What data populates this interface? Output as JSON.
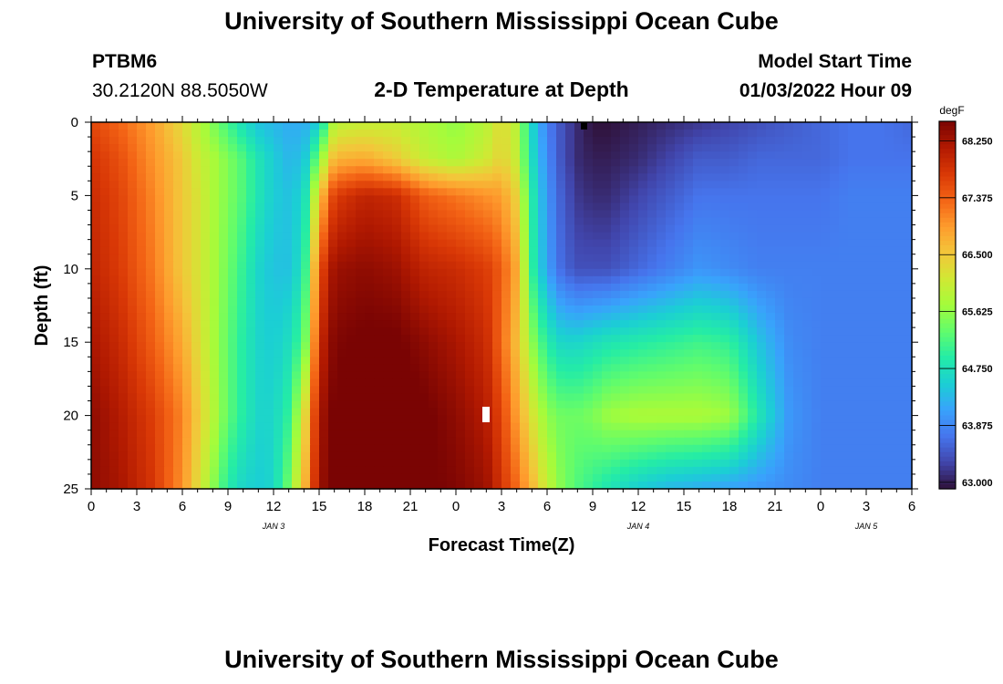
{
  "page": {
    "title": "University of Southern Mississippi Ocean Cube",
    "footer_title": "University of Southern Mississippi Ocean Cube"
  },
  "station": {
    "id": "PTBM6",
    "coords": "30.2120N  88.5050W"
  },
  "model": {
    "start_label": "Model Start Time",
    "start_value": "01/03/2022 Hour 09"
  },
  "chart_data": {
    "type": "heatmap",
    "title": "2-D Temperature at Depth",
    "xlabel": "Forecast Time(Z)",
    "ylabel": "Depth (ft)",
    "x_range_hours_from_jan3_00z": [
      0,
      54
    ],
    "x_tick_labels": [
      "0",
      "3",
      "6",
      "9",
      "12",
      "15",
      "18",
      "21",
      "0",
      "3",
      "6",
      "9",
      "12",
      "15",
      "18",
      "21",
      "0",
      "3",
      "6"
    ],
    "x_date_labels": [
      {
        "label": "JAN 3",
        "hour": 12
      },
      {
        "label": "JAN 4",
        "hour": 36
      },
      {
        "label": "JAN 5",
        "hour": 51
      }
    ],
    "y_ticks": [
      0,
      5,
      10,
      15,
      20,
      25
    ],
    "ylim": [
      0,
      25
    ],
    "y_inverted": true,
    "colorbar": {
      "unit": "degF",
      "min": 62.9,
      "max": 68.55,
      "tick_values": [
        68.25,
        67.375,
        66.5,
        65.625,
        64.75,
        63.875,
        63.0
      ],
      "tick_labels": [
        "68.250",
        "67.375",
        "66.500",
        "65.625",
        "64.750",
        "63.875",
        "63.000"
      ],
      "colormap": [
        "#30123b",
        "#4145ab",
        "#4675ed",
        "#39a2fc",
        "#1bcfd4",
        "#24eca6",
        "#61fc6c",
        "#a4fc3b",
        "#d1e834",
        "#f3c63a",
        "#fe9b2d",
        "#f36315",
        "#d93806",
        "#b11901",
        "#7a0403"
      ]
    },
    "temperature_grid_degF": {
      "depth_ft": [
        0,
        2.5,
        5,
        10,
        15,
        20,
        25
      ],
      "time_hours": [
        0,
        2,
        4,
        6,
        7,
        8,
        9,
        10,
        11,
        12,
        13,
        14,
        15,
        16,
        18,
        20,
        22,
        24,
        26,
        27,
        28,
        29,
        30,
        31,
        32,
        33,
        34,
        36,
        38,
        40,
        42,
        44,
        46,
        48,
        50,
        52,
        54
      ],
      "values": [
        [
          67.6,
          67.3,
          66.9,
          66.3,
          65.9,
          65.5,
          65.1,
          64.7,
          64.4,
          64.3,
          64.2,
          64.2,
          64.5,
          65.9,
          66.0,
          66.0,
          65.8,
          65.6,
          65.9,
          66.3,
          65.9,
          64.6,
          63.8,
          63.4,
          63.1,
          62.9,
          62.9,
          63.0,
          63.1,
          63.2,
          63.3,
          63.4,
          63.5,
          63.6,
          63.7,
          63.7,
          63.6
        ],
        [
          67.8,
          67.5,
          67.0,
          66.5,
          66.1,
          65.8,
          65.5,
          65.2,
          64.8,
          64.5,
          64.3,
          64.4,
          65.5,
          66.7,
          66.8,
          66.5,
          66.0,
          65.8,
          66.1,
          66.4,
          66.0,
          64.7,
          63.9,
          63.4,
          63.1,
          63.0,
          63.0,
          63.1,
          63.3,
          63.5,
          63.5,
          63.6,
          63.6,
          63.6,
          63.7,
          63.7,
          63.7
        ],
        [
          67.9,
          67.6,
          67.1,
          66.5,
          66.2,
          65.8,
          65.5,
          65.2,
          64.8,
          64.5,
          64.4,
          64.6,
          66.5,
          67.7,
          68.0,
          67.9,
          67.4,
          67.2,
          67.0,
          66.9,
          66.4,
          64.9,
          64.0,
          63.5,
          63.2,
          63.1,
          63.1,
          63.3,
          63.5,
          63.7,
          63.7,
          63.7,
          63.7,
          63.7,
          63.8,
          63.8,
          63.8
        ],
        [
          68.0,
          67.7,
          67.2,
          66.5,
          66.2,
          65.8,
          65.4,
          65.0,
          64.6,
          64.4,
          64.4,
          64.8,
          67.5,
          68.3,
          68.4,
          68.3,
          68.0,
          67.9,
          67.7,
          67.4,
          66.8,
          65.0,
          64.1,
          63.6,
          63.4,
          63.4,
          63.4,
          63.6,
          63.8,
          64.0,
          63.9,
          63.8,
          63.8,
          63.8,
          63.8,
          63.8,
          63.8
        ],
        [
          68.2,
          67.9,
          67.4,
          66.8,
          66.3,
          65.8,
          65.3,
          64.9,
          64.6,
          64.5,
          64.7,
          65.2,
          67.9,
          68.5,
          68.6,
          68.6,
          68.4,
          68.2,
          67.9,
          67.3,
          66.6,
          65.6,
          64.9,
          64.6,
          64.6,
          64.7,
          64.8,
          64.9,
          65.0,
          65.1,
          65.0,
          64.4,
          63.9,
          63.8,
          63.8,
          63.8,
          63.8
        ],
        [
          68.4,
          68.1,
          67.7,
          67.1,
          66.5,
          65.9,
          65.3,
          64.9,
          64.6,
          64.6,
          65.0,
          66.2,
          68.2,
          68.6,
          68.7,
          68.7,
          68.6,
          68.4,
          68.1,
          67.6,
          66.9,
          66.2,
          65.6,
          65.4,
          65.4,
          65.5,
          65.7,
          65.8,
          65.8,
          65.8,
          65.7,
          64.8,
          64.0,
          63.8,
          63.8,
          63.8,
          63.8
        ],
        [
          68.4,
          68.2,
          67.8,
          67.0,
          66.3,
          65.6,
          64.9,
          64.6,
          64.5,
          64.6,
          65.4,
          66.6,
          68.3,
          68.6,
          68.6,
          68.6,
          68.6,
          68.5,
          68.3,
          67.8,
          67.3,
          66.7,
          66.0,
          65.5,
          65.2,
          65.0,
          64.8,
          64.5,
          64.3,
          64.2,
          64.1,
          64.0,
          63.9,
          63.8,
          63.8,
          63.8,
          63.8
        ]
      ]
    }
  }
}
